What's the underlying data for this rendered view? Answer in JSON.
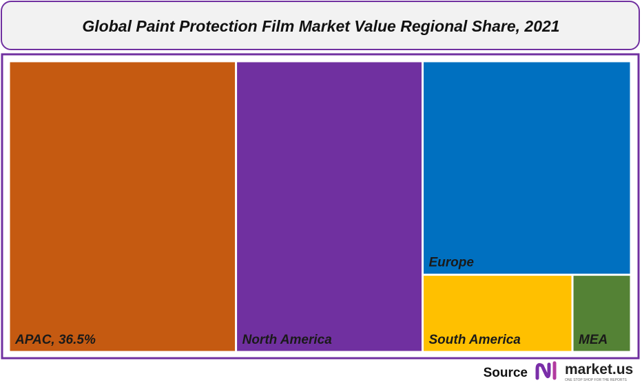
{
  "chart_data": {
    "type": "treemap",
    "title": "Global Paint Protection Film Market Value Regional Share, 2021",
    "categories": [
      "APAC, 36.5%",
      "North America",
      "Europe",
      "South America",
      "MEA"
    ],
    "values": [
      36.5,
      30,
      24.6,
      6.4,
      2.5
    ],
    "colors": [
      "#c55a11",
      "#7030a0",
      "#0070c0",
      "#ffc000",
      "#548235"
    ],
    "source": "Source",
    "source_name": "market.us",
    "source_tagline": "ONE STOP SHOP FOR THE REPORTS"
  }
}
